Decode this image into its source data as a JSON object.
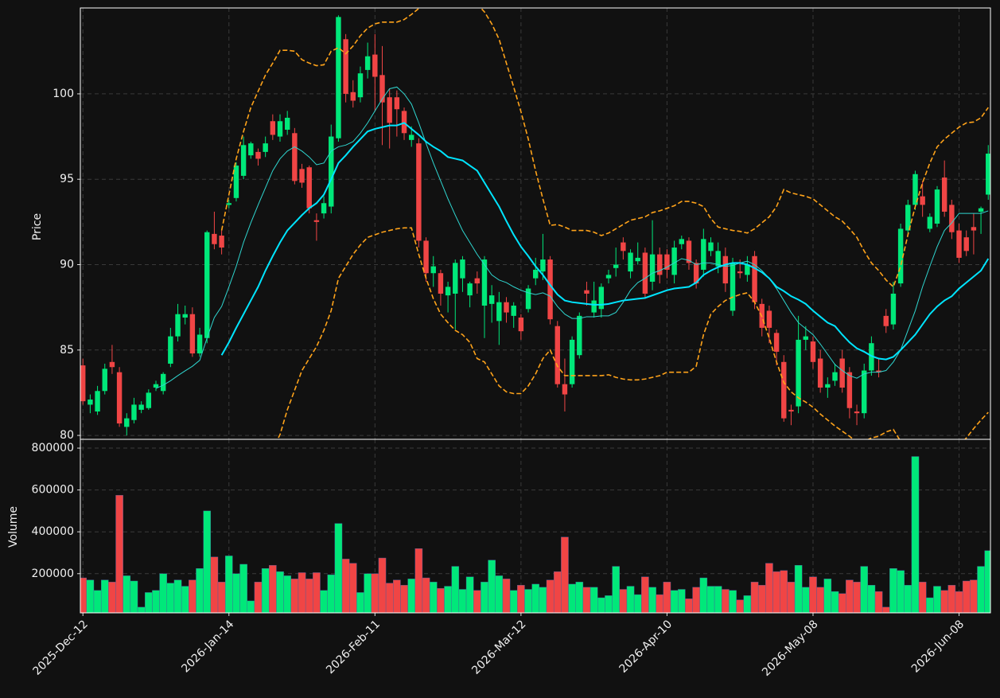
{
  "chart_data": {
    "type": "candlestick",
    "ylabel": "Price",
    "volume_label": "Volume",
    "categories": [
      "2025-Dec-12",
      null,
      null,
      null,
      null,
      null,
      null,
      null,
      null,
      null,
      null,
      null,
      null,
      null,
      null,
      null,
      null,
      null,
      null,
      null,
      "2026-Jan-14",
      null,
      null,
      null,
      null,
      null,
      null,
      null,
      null,
      null,
      null,
      null,
      null,
      null,
      null,
      null,
      null,
      null,
      null,
      null,
      "2026-Feb-11",
      null,
      null,
      null,
      null,
      null,
      null,
      null,
      null,
      null,
      null,
      null,
      null,
      null,
      null,
      null,
      null,
      null,
      null,
      null,
      "2026-Mar-12",
      null,
      null,
      null,
      null,
      null,
      null,
      null,
      null,
      null,
      null,
      null,
      null,
      null,
      null,
      null,
      null,
      null,
      null,
      null,
      "2026-Apr-10",
      null,
      null,
      null,
      null,
      null,
      null,
      null,
      null,
      null,
      null,
      null,
      null,
      null,
      null,
      null,
      null,
      null,
      null,
      null,
      "2026-May-08",
      null,
      null,
      null,
      null,
      null,
      null,
      null,
      null,
      null,
      null,
      null,
      null,
      null,
      null,
      null,
      null,
      null,
      null,
      null,
      "2026-Jun-08",
      null,
      null,
      null,
      null
    ],
    "xlim": [
      -0.35,
      124.3
    ],
    "open": [
      84.1,
      81.8,
      81.4,
      82.6,
      84.3,
      83.7,
      80.5,
      80.9,
      81.5,
      81.6,
      82.8,
      82.6,
      84.2,
      85.8,
      86.9,
      87.1,
      84.8,
      85.7,
      91.8,
      91.7,
      93.5,
      93.9,
      95.2,
      96.4,
      96.6,
      96.6,
      98.4,
      97.5,
      97.9,
      97.7,
      95.6,
      95.7,
      92.6,
      93.0,
      93.4,
      97.4,
      103.2,
      100.1,
      99.8,
      101.4,
      102.3,
      101.1,
      99.8,
      99.8,
      99.0,
      97.3,
      97.1,
      91.4,
      89.5,
      89.5,
      88.2,
      88.3,
      89.2,
      88.2,
      89.2,
      87.6,
      87.7,
      86.7,
      87.8,
      87.0,
      86.9,
      87.4,
      89.2,
      89.6,
      90.3,
      86.4,
      83.0,
      83.0,
      84.7,
      88.5,
      87.2,
      87.4,
      89.2,
      89.8,
      91.3,
      89.6,
      90.2,
      90.7,
      89.0,
      90.6,
      90.6,
      89.4,
      91.2,
      91.4,
      90.1,
      89.7,
      90.8,
      89.9,
      90.5,
      87.3,
      89.6,
      89.4,
      90.5,
      87.7,
      87.3,
      86.0,
      84.3,
      81.5,
      81.7,
      85.6,
      85.5,
      84.5,
      82.8,
      83.2,
      84.5,
      83.7,
      81.4,
      81.3,
      83.8,
      83.8,
      87.0,
      86.5,
      88.9,
      92.0,
      93.5,
      94.0,
      92.1,
      92.4,
      95.1,
      93.5,
      92.0,
      91.6,
      92.2,
      93.1,
      94.1
    ],
    "high": [
      84.5,
      82.4,
      82.9,
      84.2,
      85.3,
      84.0,
      81.3,
      82.2,
      82.0,
      82.7,
      83.2,
      83.7,
      86.3,
      87.7,
      87.6,
      87.5,
      86.3,
      92.0,
      93.1,
      92.0,
      93.8,
      96.0,
      97.5,
      97.2,
      96.8,
      97.5,
      98.8,
      98.8,
      99.0,
      98.0,
      95.9,
      95.8,
      93.0,
      94.0,
      98.2,
      104.6,
      103.5,
      100.8,
      101.6,
      103.0,
      103.5,
      102.8,
      100.3,
      100.2,
      99.2,
      98.1,
      97.4,
      91.6,
      90.5,
      89.7,
      89.0,
      90.3,
      90.5,
      89.0,
      89.6,
      90.5,
      88.8,
      88.4,
      88.1,
      87.8,
      87.1,
      88.8,
      90.4,
      91.8,
      90.5,
      86.7,
      84.5,
      85.8,
      87.2,
      89.0,
      89.0,
      88.9,
      89.7,
      91.0,
      91.6,
      90.9,
      91.3,
      91.0,
      92.6,
      91.0,
      90.9,
      91.4,
      91.7,
      91.6,
      90.3,
      92.1,
      91.6,
      91.3,
      91.0,
      90.4,
      90.3,
      90.5,
      90.8,
      88.0,
      87.6,
      86.2,
      84.7,
      81.8,
      87.0,
      86.4,
      85.8,
      85.0,
      83.4,
      84.2,
      85.0,
      84.0,
      81.8,
      84.2,
      85.8,
      84.5,
      87.4,
      89.0,
      92.4,
      93.8,
      95.5,
      94.9,
      93.0,
      94.6,
      96.1,
      93.8,
      92.4,
      92.0,
      93.0,
      93.4,
      97.0
    ],
    "low": [
      81.8,
      81.3,
      81.2,
      82.4,
      83.6,
      80.5,
      80.0,
      80.7,
      81.3,
      81.5,
      82.6,
      82.4,
      84.0,
      85.5,
      86.5,
      84.6,
      84.6,
      85.4,
      90.9,
      90.6,
      93.3,
      93.7,
      95.0,
      96.2,
      95.8,
      96.3,
      97.3,
      97.2,
      97.6,
      94.7,
      94.5,
      93.0,
      91.4,
      92.7,
      93.0,
      97.2,
      99.5,
      99.2,
      99.5,
      100.9,
      99.0,
      97.0,
      96.8,
      97.5,
      97.3,
      96.9,
      91.0,
      89.0,
      88.7,
      87.6,
      87.2,
      86.2,
      88.4,
      87.5,
      88.3,
      85.7,
      86.6,
      85.3,
      86.6,
      86.3,
      85.6,
      87.2,
      88.8,
      89.1,
      86.5,
      82.8,
      81.4,
      82.8,
      84.5,
      87.6,
      86.9,
      86.9,
      88.9,
      89.3,
      90.3,
      89.2,
      90.0,
      88.0,
      88.5,
      88.9,
      89.2,
      88.9,
      90.9,
      89.7,
      88.6,
      89.3,
      90.5,
      89.5,
      88.4,
      87.0,
      89.2,
      89.0,
      87.4,
      85.8,
      85.4,
      84.1,
      80.8,
      80.6,
      81.3,
      85.0,
      83.9,
      82.5,
      82.2,
      82.9,
      82.5,
      81.0,
      80.6,
      81.0,
      83.5,
      83.4,
      86.0,
      86.2,
      88.7,
      91.7,
      93.2,
      92.8,
      91.9,
      92.2,
      92.8,
      91.5,
      90.1,
      90.5,
      90.6,
      91.8,
      93.8
    ],
    "close": [
      82.0,
      82.1,
      82.6,
      83.9,
      84.0,
      80.7,
      81.0,
      81.8,
      81.8,
      82.5,
      83.0,
      83.6,
      85.8,
      87.1,
      87.1,
      84.8,
      85.9,
      91.9,
      91.2,
      91.0,
      93.6,
      95.8,
      97.0,
      97.1,
      96.2,
      97.1,
      97.6,
      98.4,
      98.6,
      94.9,
      94.8,
      93.3,
      92.5,
      93.6,
      97.5,
      104.5,
      100.0,
      99.6,
      101.2,
      102.2,
      101.0,
      99.5,
      98.3,
      99.1,
      97.7,
      97.6,
      91.4,
      89.5,
      89.9,
      88.3,
      88.7,
      90.1,
      90.3,
      88.9,
      88.9,
      90.3,
      88.2,
      87.8,
      87.2,
      87.6,
      86.1,
      88.6,
      89.7,
      90.3,
      86.8,
      83.0,
      82.4,
      85.6,
      87.0,
      88.3,
      87.9,
      88.7,
      89.4,
      90.0,
      90.8,
      90.7,
      90.4,
      88.3,
      90.6,
      89.4,
      89.7,
      91.0,
      91.5,
      90.1,
      88.9,
      91.5,
      91.3,
      90.8,
      88.9,
      90.1,
      89.5,
      90.0,
      87.8,
      86.3,
      86.3,
      84.9,
      81.0,
      81.4,
      85.6,
      85.8,
      84.3,
      82.8,
      83.0,
      83.7,
      82.8,
      81.6,
      81.3,
      83.8,
      85.4,
      83.7,
      86.4,
      88.3,
      92.1,
      93.5,
      95.3,
      93.5,
      92.8,
      94.4,
      93.1,
      91.9,
      90.4,
      90.8,
      92.0,
      93.3,
      96.5
    ],
    "volume": [
      180000,
      170000,
      120000,
      170000,
      160000,
      575000,
      190000,
      165000,
      40000,
      110000,
      120000,
      200000,
      155000,
      170000,
      140000,
      170000,
      225000,
      500000,
      280000,
      160000,
      285000,
      200000,
      245000,
      70000,
      160000,
      225000,
      240000,
      210000,
      190000,
      175000,
      205000,
      175000,
      205000,
      120000,
      195000,
      440000,
      270000,
      250000,
      110000,
      200000,
      200000,
      275000,
      155000,
      170000,
      145000,
      175000,
      320000,
      180000,
      160000,
      130000,
      140000,
      235000,
      125000,
      185000,
      120000,
      160000,
      265000,
      190000,
      175000,
      120000,
      145000,
      125000,
      150000,
      135000,
      170000,
      210000,
      375000,
      150000,
      160000,
      135000,
      135000,
      85000,
      95000,
      235000,
      125000,
      140000,
      100000,
      185000,
      135000,
      100000,
      160000,
      120000,
      125000,
      80000,
      135000,
      180000,
      140000,
      140000,
      125000,
      120000,
      75000,
      95000,
      160000,
      145000,
      250000,
      210000,
      215000,
      160000,
      240000,
      135000,
      185000,
      135000,
      175000,
      115000,
      105000,
      170000,
      160000,
      235000,
      145000,
      115000,
      40000,
      225000,
      215000,
      145000,
      760000,
      160000,
      85000,
      140000,
      120000,
      145000,
      115000,
      165000,
      170000,
      235000,
      310000
    ],
    "up_color": "#00e87a",
    "down_color": "#f04545",
    "overlays": [
      {
        "color": "#2fd6d0",
        "width": 1,
        "dash": false,
        "values": [
          null,
          null,
          null,
          null,
          null,
          null,
          null,
          null,
          null,
          null,
          82.75,
          82.94,
          83.2,
          83.5,
          83.78,
          84.05,
          84.4,
          85.7,
          86.9,
          87.55,
          88.7,
          89.9,
          91.3,
          92.45,
          93.5,
          94.5,
          95.5,
          96.2,
          96.65,
          96.9,
          96.65,
          96.3,
          95.85,
          95.95,
          96.65,
          96.9,
          97.0,
          97.2,
          97.7,
          98.3,
          99.0,
          99.7,
          100.3,
          100.4,
          100.0,
          99.4,
          98.3,
          97.1,
          95.95,
          94.9,
          93.85,
          92.9,
          92.0,
          91.3,
          90.6,
          90.0,
          89.4,
          89.1,
          88.95,
          88.7,
          88.5,
          88.35,
          88.25,
          88.35,
          88.15,
          87.55,
          87.1,
          86.85,
          86.85,
          86.95,
          86.95,
          87.0,
          87.0,
          87.2,
          87.8,
          88.5,
          88.95,
          89.2,
          89.5,
          89.65,
          89.85,
          90.1,
          90.35,
          90.25,
          90.0,
          90.1,
          90.1,
          90.0,
          89.9,
          89.95,
          90.1,
          90.2,
          90.0,
          89.65,
          89.2,
          88.6,
          87.9,
          87.2,
          86.6,
          86.25,
          85.9,
          85.35,
          84.75,
          84.15,
          83.8,
          83.5,
          83.35,
          83.6,
          83.7,
          83.7,
          83.8,
          84.3,
          85.0,
          86.15,
          87.3,
          88.7,
          89.9,
          91.05,
          92.0,
          92.45,
          93.0,
          93.0,
          93.0,
          93.0,
          93.15
        ]
      },
      {
        "color": "#00e5ff",
        "width": 2,
        "dash": false,
        "values": [
          null,
          null,
          null,
          null,
          null,
          null,
          null,
          null,
          null,
          null,
          null,
          null,
          null,
          null,
          null,
          null,
          null,
          null,
          null,
          84.7,
          85.45,
          86.3,
          87.1,
          87.9,
          88.7,
          89.65,
          90.5,
          91.3,
          92.0,
          92.45,
          92.9,
          93.3,
          93.6,
          94.1,
          95.0,
          95.95,
          96.4,
          96.9,
          97.35,
          97.8,
          97.95,
          98.05,
          98.15,
          98.15,
          98.3,
          97.95,
          97.6,
          97.2,
          96.9,
          96.65,
          96.3,
          96.2,
          96.1,
          95.8,
          95.5,
          94.8,
          94.1,
          93.4,
          92.55,
          91.75,
          91.05,
          90.5,
          89.9,
          89.4,
          88.8,
          88.25,
          87.9,
          87.8,
          87.75,
          87.7,
          87.65,
          87.65,
          87.7,
          87.8,
          87.9,
          87.95,
          88.0,
          88.05,
          88.2,
          88.35,
          88.5,
          88.6,
          88.65,
          88.7,
          88.95,
          89.4,
          89.65,
          89.85,
          90.0,
          90.1,
          90.1,
          90.0,
          89.8,
          89.55,
          89.2,
          88.7,
          88.45,
          88.15,
          87.95,
          87.7,
          87.3,
          86.95,
          86.6,
          86.4,
          85.9,
          85.45,
          85.1,
          84.9,
          84.65,
          84.5,
          84.45,
          84.6,
          85.0,
          85.45,
          85.9,
          86.5,
          87.1,
          87.55,
          87.9,
          88.15,
          88.6,
          88.95,
          89.3,
          89.65,
          90.35
        ]
      },
      {
        "color": "#ffa31a",
        "width": 1.6,
        "dash": true,
        "values": [
          null,
          null,
          null,
          null,
          null,
          null,
          null,
          null,
          null,
          null,
          null,
          null,
          null,
          null,
          null,
          null,
          null,
          null,
          null,
          92.0,
          94.1,
          96.2,
          97.8,
          99.2,
          100.15,
          101.1,
          101.8,
          102.55,
          102.55,
          102.5,
          102.0,
          101.8,
          101.65,
          101.7,
          102.5,
          102.7,
          102.35,
          102.8,
          103.4,
          103.85,
          104.1,
          104.2,
          104.2,
          104.2,
          104.35,
          104.65,
          105.0,
          105.5,
          105.7,
          105.9,
          105.9,
          105.9,
          105.7,
          105.6,
          105.25,
          104.8,
          104.1,
          103.2,
          101.8,
          100.4,
          98.95,
          97.35,
          95.5,
          93.85,
          92.3,
          92.35,
          92.2,
          92.0,
          92.0,
          92.0,
          91.9,
          91.7,
          91.85,
          92.1,
          92.35,
          92.6,
          92.7,
          92.8,
          93.05,
          93.15,
          93.3,
          93.45,
          93.7,
          93.7,
          93.6,
          93.4,
          92.7,
          92.2,
          92.1,
          92.0,
          91.95,
          91.85,
          92.1,
          92.45,
          92.8,
          93.4,
          94.4,
          94.2,
          94.1,
          94.0,
          93.85,
          93.5,
          93.15,
          92.8,
          92.55,
          92.1,
          91.6,
          90.8,
          90.1,
          89.65,
          89.1,
          88.7,
          89.9,
          91.75,
          93.4,
          94.8,
          95.95,
          96.9,
          97.35,
          97.7,
          98.05,
          98.3,
          98.35,
          98.6,
          99.2
        ]
      },
      {
        "color": "#ffa31a",
        "width": 1.6,
        "dash": true,
        "values": [
          null,
          null,
          null,
          null,
          null,
          null,
          null,
          null,
          null,
          null,
          null,
          null,
          null,
          null,
          null,
          null,
          null,
          null,
          null,
          77.4,
          76.8,
          76.4,
          76.4,
          76.6,
          77.25,
          78.2,
          79.2,
          80.05,
          81.5,
          82.65,
          83.8,
          84.5,
          85.2,
          86.15,
          87.3,
          89.2,
          89.9,
          90.6,
          91.15,
          91.6,
          91.75,
          91.9,
          92.0,
          92.1,
          92.15,
          92.15,
          90.6,
          89.2,
          88.0,
          87.1,
          86.6,
          86.15,
          85.9,
          85.45,
          84.5,
          84.3,
          83.6,
          82.9,
          82.55,
          82.45,
          82.45,
          82.9,
          83.6,
          84.5,
          85.0,
          84.05,
          83.5,
          83.5,
          83.5,
          83.5,
          83.5,
          83.5,
          83.55,
          83.4,
          83.3,
          83.25,
          83.25,
          83.3,
          83.4,
          83.5,
          83.7,
          83.7,
          83.7,
          83.7,
          84.05,
          85.9,
          87.1,
          87.55,
          87.9,
          88.1,
          88.25,
          88.35,
          87.8,
          86.95,
          85.7,
          84.3,
          83.1,
          82.55,
          82.2,
          81.95,
          81.65,
          81.25,
          80.9,
          80.55,
          80.25,
          79.95,
          79.6,
          79.65,
          79.85,
          79.95,
          80.2,
          80.35,
          79.65,
          79.0,
          78.45,
          78.2,
          78.0,
          78.2,
          78.55,
          78.9,
          79.4,
          79.85,
          80.4,
          80.9,
          81.35
        ]
      }
    ],
    "ylim": [
      79.77,
      105.03
    ],
    "yticks": [
      80,
      85,
      90,
      95,
      100
    ],
    "volume_ylim": [
      12750,
      842000
    ],
    "volume_yticks": [
      200000,
      400000,
      600000,
      800000
    ],
    "grid": true
  }
}
